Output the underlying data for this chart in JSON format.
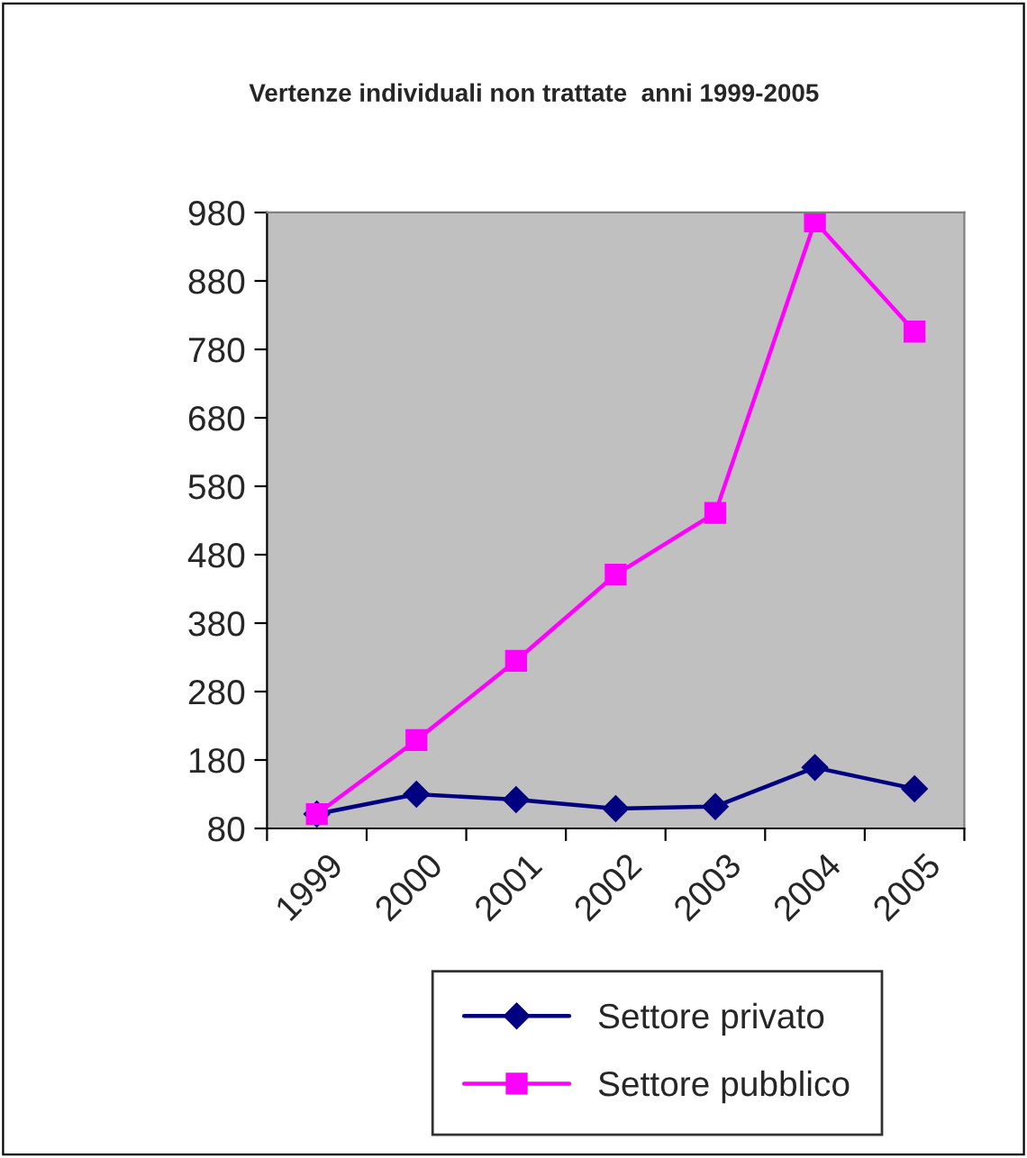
{
  "chart_data": {
    "type": "line",
    "title": "Vertenze individuali non trattate  anni 1999-2005",
    "categories": [
      "1999",
      "2000",
      "2001",
      "2002",
      "2003",
      "2004",
      "2005"
    ],
    "series": [
      {
        "name": "Settore privato",
        "color": "#000080",
        "marker": "diamond",
        "values": [
          101,
          130,
          122,
          109,
          112,
          169,
          138
        ]
      },
      {
        "name": "Settore pubblico",
        "color": "#ff00ff",
        "marker": "square",
        "values": [
          101,
          209,
          325,
          451,
          541,
          967,
          806
        ]
      }
    ],
    "ylim": [
      80,
      980
    ],
    "yticks": [
      80,
      180,
      280,
      380,
      480,
      580,
      680,
      780,
      880,
      980
    ],
    "grid": false,
    "legend": "bottom"
  }
}
